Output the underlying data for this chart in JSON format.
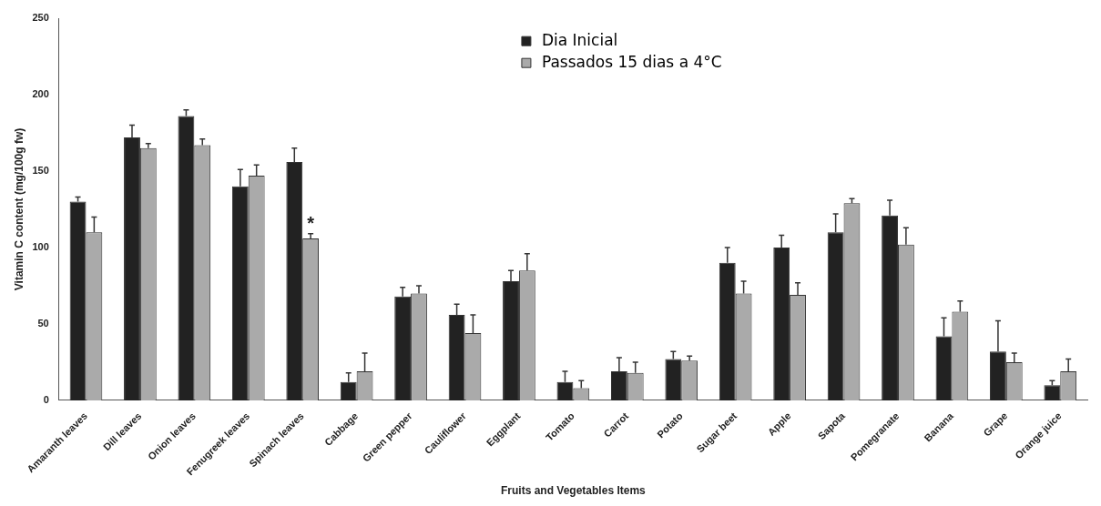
{
  "chart_data": {
    "type": "bar",
    "xlabel": "Fruits and Vegetables Items",
    "ylabel": "Vitamin C content (mg/100g fw)",
    "categories": [
      "Amaranth leaves",
      "Dill leaves",
      "Onion leaves",
      "Fenugreek leaves",
      "Spinach leaves",
      "Cabbage",
      "Green pepper",
      "Cauliflower",
      "Eggplant",
      "Tomato",
      "Carrot",
      "Potato",
      "Sugar beet",
      "Apple",
      "Sapota",
      "Pomegranate",
      "Banana",
      "Grape",
      "Orange juice"
    ],
    "series": [
      {
        "name": "Dia Inicial",
        "color": "#222222",
        "values": [
          130,
          172,
          186,
          140,
          156,
          12,
          68,
          56,
          78,
          12,
          19,
          27,
          90,
          100,
          110,
          121,
          42,
          32,
          10
        ],
        "errors": [
          [
            130,
            133
          ],
          [
            172,
            180
          ],
          [
            186,
            190
          ],
          [
            140,
            151
          ],
          [
            156,
            165
          ],
          [
            12,
            18
          ],
          [
            68,
            74
          ],
          [
            56,
            63
          ],
          [
            78,
            85
          ],
          [
            12,
            19
          ],
          [
            19,
            28
          ],
          [
            27,
            32
          ],
          [
            90,
            100
          ],
          [
            100,
            108
          ],
          [
            110,
            122
          ],
          [
            121,
            131
          ],
          [
            42,
            54
          ],
          [
            32,
            52
          ],
          [
            10,
            13
          ]
        ]
      },
      {
        "name": "Passados 15 dias a 4°C",
        "color": "#aaaaaa",
        "values": [
          110,
          165,
          167,
          147,
          106,
          19,
          70,
          44,
          85,
          8,
          18,
          26,
          70,
          69,
          129,
          102,
          58,
          25,
          19
        ],
        "errors": [
          [
            110,
            120
          ],
          [
            165,
            168
          ],
          [
            167,
            171
          ],
          [
            147,
            154
          ],
          [
            106,
            109
          ],
          [
            19,
            31
          ],
          [
            70,
            75
          ],
          [
            44,
            56
          ],
          [
            85,
            96
          ],
          [
            8,
            13
          ],
          [
            18,
            25
          ],
          [
            26,
            29
          ],
          [
            70,
            78
          ],
          [
            69,
            77
          ],
          [
            129,
            132
          ],
          [
            102,
            113
          ],
          [
            58,
            65
          ],
          [
            25,
            31
          ],
          [
            19,
            27
          ]
        ]
      }
    ],
    "annotations": [
      {
        "text": "*",
        "x": "Spinach leaves",
        "y": 115
      }
    ],
    "ylim": [
      0,
      250
    ],
    "yticks": [
      0,
      50,
      100,
      150,
      200,
      250
    ],
    "grid": false,
    "legend": "top"
  }
}
